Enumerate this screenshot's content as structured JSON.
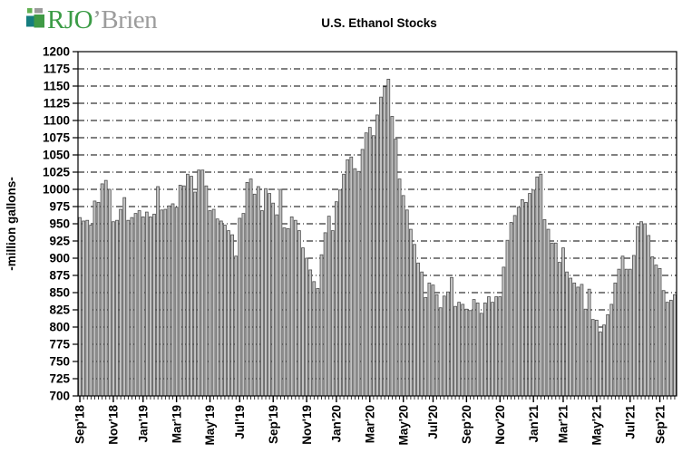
{
  "logo": {
    "text_primary": "RJO",
    "text_secondary": "’Brien",
    "colors": {
      "primary_text": "#3c9c47",
      "secondary_text": "#9c9c9c",
      "mark_light_green": "#62b152",
      "mark_gray": "#9b9b9b",
      "mark_teal": "#157d7f",
      "mark_green": "#3f9a45"
    }
  },
  "chart_data": {
    "type": "bar",
    "title": "U.S. Ethanol Stocks",
    "ylabel": "-million  gallons-",
    "xlabel": "",
    "ylim": [
      700,
      1200
    ],
    "ytick_step": 25,
    "grid": "dashed-horizontal",
    "legend": "none",
    "frequency": "weekly",
    "bar_fill": "#c3c3c3",
    "bar_stroke": "#4f4f4f",
    "x_tick_labels": [
      "Sep'18",
      "Nov'18",
      "Jan'19",
      "Mar'19",
      "May'19",
      "Jul'19",
      "Sep'19",
      "Nov'19",
      "Jan'20",
      "Mar'20",
      "May'20",
      "Jul'20",
      "Sep'20",
      "Nov'20",
      "Jan'21",
      "Mar'21",
      "May'21",
      "Jul'21",
      "Sep'21"
    ],
    "x_tick_indices": [
      0,
      9,
      17,
      26,
      35,
      43,
      52,
      61,
      69,
      78,
      87,
      95,
      104,
      113,
      122,
      130,
      139,
      148,
      156
    ],
    "values": [
      959,
      954,
      955,
      948,
      983,
      981,
      1008,
      1013,
      1000,
      953,
      955,
      971,
      988,
      955,
      959,
      965,
      969,
      960,
      967,
      960,
      964,
      1004,
      970,
      971,
      976,
      979,
      974,
      1006,
      1005,
      1022,
      1019,
      996,
      1028,
      1028,
      1005,
      969,
      971,
      957,
      954,
      948,
      940,
      934,
      903,
      958,
      965,
      1010,
      1015,
      993,
      1004,
      969,
      1001,
      994,
      980,
      963,
      1000,
      944,
      943,
      960,
      955,
      940,
      915,
      900,
      883,
      866,
      856,
      905,
      937,
      961,
      940,
      982,
      999,
      1022,
      1043,
      1047,
      1030,
      1026,
      1058,
      1082,
      1090,
      1078,
      1108,
      1134,
      1149,
      1160,
      1106,
      1073,
      1015,
      991,
      970,
      942,
      920,
      893,
      880,
      843,
      864,
      861,
      847,
      828,
      845,
      851,
      872,
      830,
      836,
      833,
      826,
      824,
      840,
      835,
      820,
      835,
      844,
      836,
      844,
      844,
      887,
      926,
      952,
      962,
      974,
      985,
      981,
      994,
      999,
      1018,
      1022,
      956,
      942,
      922,
      922,
      894,
      915,
      880,
      871,
      864,
      858,
      862,
      826,
      855,
      811,
      810,
      793,
      803,
      818,
      833,
      864,
      884,
      903,
      884,
      884,
      904,
      946,
      953,
      950,
      933,
      902,
      890,
      885,
      853,
      836,
      839,
      847
    ]
  }
}
